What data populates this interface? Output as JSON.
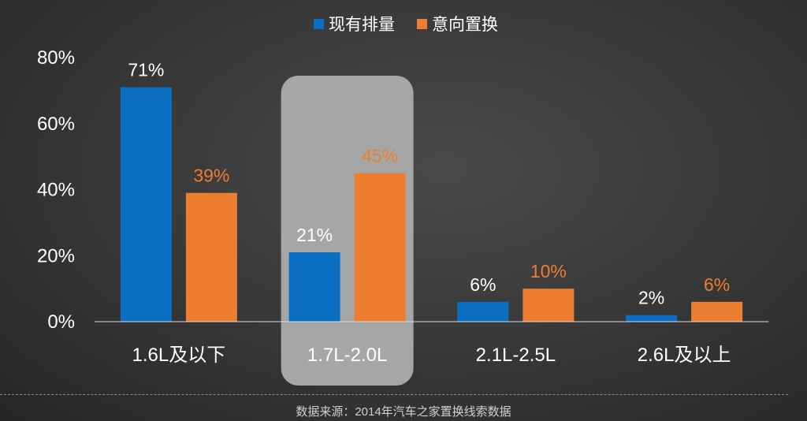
{
  "chart_data": {
    "type": "bar",
    "categories": [
      "1.6L及以下",
      "1.7L-2.0L",
      "2.1L-2.5L",
      "2.6L及以上"
    ],
    "series": [
      {
        "name": "现有排量",
        "values": [
          71,
          21,
          6,
          2
        ],
        "labels": [
          "71%",
          "21%",
          "6%",
          "2%"
        ],
        "color": "#0a6fc2",
        "label_color": "#ffffff"
      },
      {
        "name": "意向置换",
        "values": [
          39,
          45,
          10,
          6
        ],
        "labels": [
          "39%",
          "45%",
          "10%",
          "6%"
        ],
        "color": "#ed7d31",
        "label_color": "#ed7d31"
      }
    ],
    "ylim": [
      0,
      80
    ],
    "yticks": [
      "0%",
      "20%",
      "40%",
      "60%",
      "80%"
    ],
    "legend_position": "top-center",
    "highlighted_category": "1.7L-2.0L",
    "grid": false
  },
  "footer": {
    "source": "数据来源：2014年汽车之家置换线索数据"
  },
  "colors": {
    "highlight_box": "#a6a6a6",
    "axis": "#d9d9d9"
  }
}
